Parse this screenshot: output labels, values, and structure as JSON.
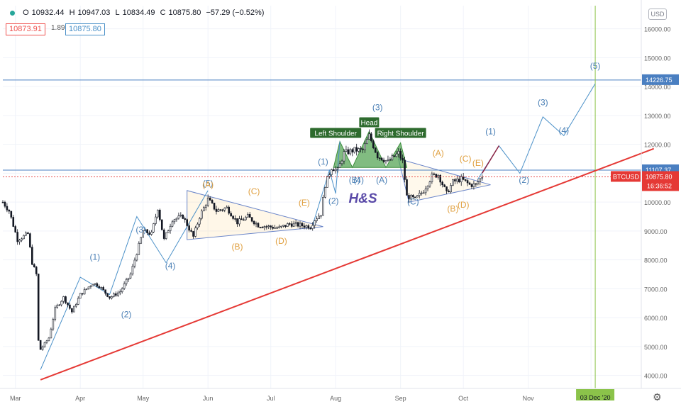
{
  "header": {
    "ohlc": [
      {
        "label": "O",
        "value": "10932.44"
      },
      {
        "label": "H",
        "value": "10947.03"
      },
      {
        "label": "L",
        "value": "10834.49"
      },
      {
        "label": "C",
        "value": "10875.80"
      }
    ],
    "change": "−57.29 (−0.52%)",
    "bid": "10873.91",
    "spread": "1.89",
    "ask": "10875.80",
    "currency": "USD"
  },
  "chart_data": {
    "type": "candlestick",
    "symbol": "BTCUSD",
    "y_ticks": [
      4000,
      5000,
      6000,
      7000,
      8000,
      9000,
      10000,
      11000,
      12000,
      13000,
      14000,
      15000,
      16000
    ],
    "y_tick_labels": [
      "4000.00",
      "5000.00",
      "6000.00",
      "7000.00",
      "8000.00",
      "9000.00",
      "10000.00",
      "11000.00",
      "12000.00",
      "13000.00",
      "14000.00",
      "15000.00",
      "16000.00"
    ],
    "ylim": [
      3550,
      16800
    ],
    "xlim": [
      "2020-02-24",
      "2020-12-25"
    ],
    "x_ticks": [
      {
        "date": "2020-03-01",
        "label": "Mar"
      },
      {
        "date": "2020-04-01",
        "label": "Apr"
      },
      {
        "date": "2020-05-01",
        "label": "May"
      },
      {
        "date": "2020-06-01",
        "label": "Jun"
      },
      {
        "date": "2020-07-01",
        "label": "Jul"
      },
      {
        "date": "2020-08-01",
        "label": "Aug"
      },
      {
        "date": "2020-09-01",
        "label": "Sep"
      },
      {
        "date": "2020-10-01",
        "label": "Oct"
      },
      {
        "date": "2020-11-01",
        "label": "Nov"
      },
      {
        "date": "2020-12-01",
        "label": "Dec"
      }
    ],
    "price_path": [
      [
        "2020-02-24",
        10000
      ],
      [
        "2020-02-27",
        9700
      ],
      [
        "2020-03-02",
        8700
      ],
      [
        "2020-03-07",
        8900
      ],
      [
        "2020-03-09",
        7900
      ],
      [
        "2020-03-11",
        7500
      ],
      [
        "2020-03-12",
        5200
      ],
      [
        "2020-03-13",
        4900
      ],
      [
        "2020-03-17",
        5300
      ],
      [
        "2020-03-20",
        6300
      ],
      [
        "2020-03-24",
        6700
      ],
      [
        "2020-03-28",
        6200
      ],
      [
        "2020-04-01",
        6800
      ],
      [
        "2020-04-07",
        7200
      ],
      [
        "2020-04-10",
        7100
      ],
      [
        "2020-04-15",
        6700
      ],
      [
        "2020-04-20",
        6900
      ],
      [
        "2020-04-25",
        7500
      ],
      [
        "2020-04-29",
        8500
      ],
      [
        "2020-05-01",
        9000
      ],
      [
        "2020-05-05",
        8900
      ],
      [
        "2020-05-08",
        9800
      ],
      [
        "2020-05-11",
        8700
      ],
      [
        "2020-05-15",
        9400
      ],
      [
        "2020-05-20",
        9500
      ],
      [
        "2020-05-25",
        8800
      ],
      [
        "2020-05-28",
        9500
      ],
      [
        "2020-06-01",
        10100
      ],
      [
        "2020-06-05",
        9700
      ],
      [
        "2020-06-10",
        9800
      ],
      [
        "2020-06-15",
        9300
      ],
      [
        "2020-06-20",
        9500
      ],
      [
        "2020-06-25",
        9200
      ],
      [
        "2020-06-30",
        9150
      ],
      [
        "2020-07-05",
        9100
      ],
      [
        "2020-07-10",
        9250
      ],
      [
        "2020-07-15",
        9200
      ],
      [
        "2020-07-20",
        9150
      ],
      [
        "2020-07-22",
        9400
      ],
      [
        "2020-07-25",
        9600
      ],
      [
        "2020-07-27",
        10600
      ],
      [
        "2020-07-30",
        11200
      ],
      [
        "2020-08-02",
        11100
      ],
      [
        "2020-08-05",
        11700
      ],
      [
        "2020-08-10",
        11800
      ],
      [
        "2020-08-14",
        11800
      ],
      [
        "2020-08-17",
        12300
      ],
      [
        "2020-08-21",
        11600
      ],
      [
        "2020-08-26",
        11400
      ],
      [
        "2020-08-31",
        11700
      ],
      [
        "2020-09-02",
        11400
      ],
      [
        "2020-09-04",
        10200
      ],
      [
        "2020-09-08",
        10100
      ],
      [
        "2020-09-12",
        10400
      ],
      [
        "2020-09-16",
        10900
      ],
      [
        "2020-09-19",
        10950
      ],
      [
        "2020-09-23",
        10300
      ],
      [
        "2020-09-26",
        10700
      ],
      [
        "2020-09-30",
        10800
      ],
      [
        "2020-10-04",
        10600
      ],
      [
        "2020-10-07",
        10600
      ],
      [
        "2020-10-10",
        10900
      ]
    ],
    "horizontal_lines": [
      {
        "value": 14226.75,
        "label": "14226.75",
        "color": "#4a7fc1"
      },
      {
        "value": 11107.37,
        "label": "11107.37",
        "color": "#4a7fc1"
      }
    ],
    "current_price": {
      "symbol": "BTCUSD",
      "value": "10875.80",
      "countdown": "16:36:52",
      "color": "#e53935"
    },
    "vertical_marker": {
      "date": "2020-12-03",
      "label": "03 Dec '20",
      "color": "#8bc34a"
    },
    "trendline": {
      "from": [
        "2020-03-13",
        3850
      ],
      "to": [
        "2020-12-31",
        11850
      ],
      "color": "#e53935"
    },
    "pattern_title": "H&S",
    "shoulder_labels": [
      "Left Shoulder",
      "Head",
      "Right Shoulder"
    ],
    "wave_labels_blue": [
      "(1)",
      "(2)",
      "(3)",
      "(4)",
      "(5)",
      "(1)",
      "(2)",
      "(3)",
      "(4)",
      "(5)",
      "(A)",
      "(B)",
      "(C)",
      "(1)",
      "(2)",
      "(3)",
      "(4)",
      "(5)"
    ],
    "wave_labels_orange": [
      "(A)",
      "(B)",
      "(C)",
      "(D)",
      "(E)",
      "(A)",
      "(B)",
      "(C)",
      "(D)",
      "(E)"
    ],
    "projection_path": [
      [
        "2020-10-08",
        10800
      ],
      [
        "2020-10-18",
        11950
      ],
      [
        "2020-10-28",
        11000
      ],
      [
        "2020-11-08",
        12950
      ],
      [
        "2020-11-18",
        12300
      ],
      [
        "2020-12-03",
        14100
      ]
    ],
    "grid": true
  }
}
